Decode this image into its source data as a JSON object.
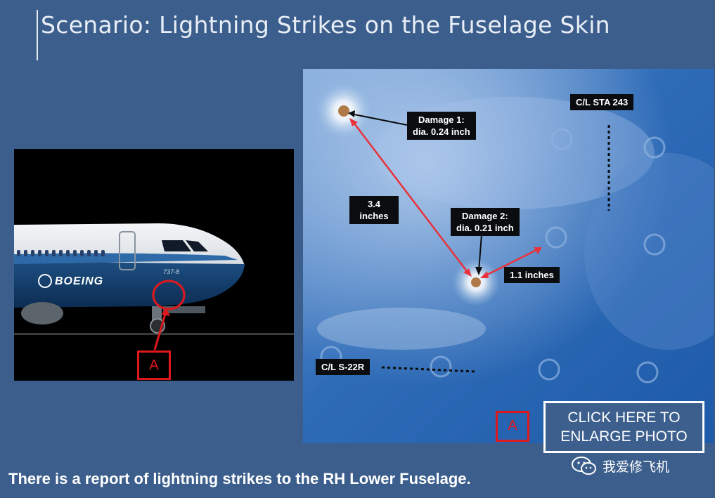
{
  "slide": {
    "title": "Scenario: Lightning Strikes on the Fuselage Skin",
    "report_text": "There is a report of lightning strikes to the RH Lower Fuselage."
  },
  "aircraft_photo": {
    "livery_text": "BOEING",
    "model_text": "737-8",
    "marker_label": "A"
  },
  "skin_photo": {
    "damage_1": {
      "line1": "Damage 1:",
      "line2": "dia. 0.24 inch"
    },
    "damage_2": {
      "line1": "Damage 2:",
      "line2": "dia. 0.21 inch"
    },
    "distance_between": {
      "line1": "3.4",
      "line2": "inches"
    },
    "distance_edge": "1.1 inches",
    "station_label": "C/L STA 243",
    "stringer_label": "C/L S-22R",
    "marker_label": "A"
  },
  "enlarge_button": {
    "line1": "CLICK HERE  TO",
    "line2": "ENLARGE PHOTO"
  },
  "watermark": {
    "text": "我爱修飞机",
    "icon": "wechat-icon"
  },
  "colors": {
    "background": "#3b5e8c",
    "marker_red": "#e0181c",
    "arrow_red": "#e8323c"
  }
}
